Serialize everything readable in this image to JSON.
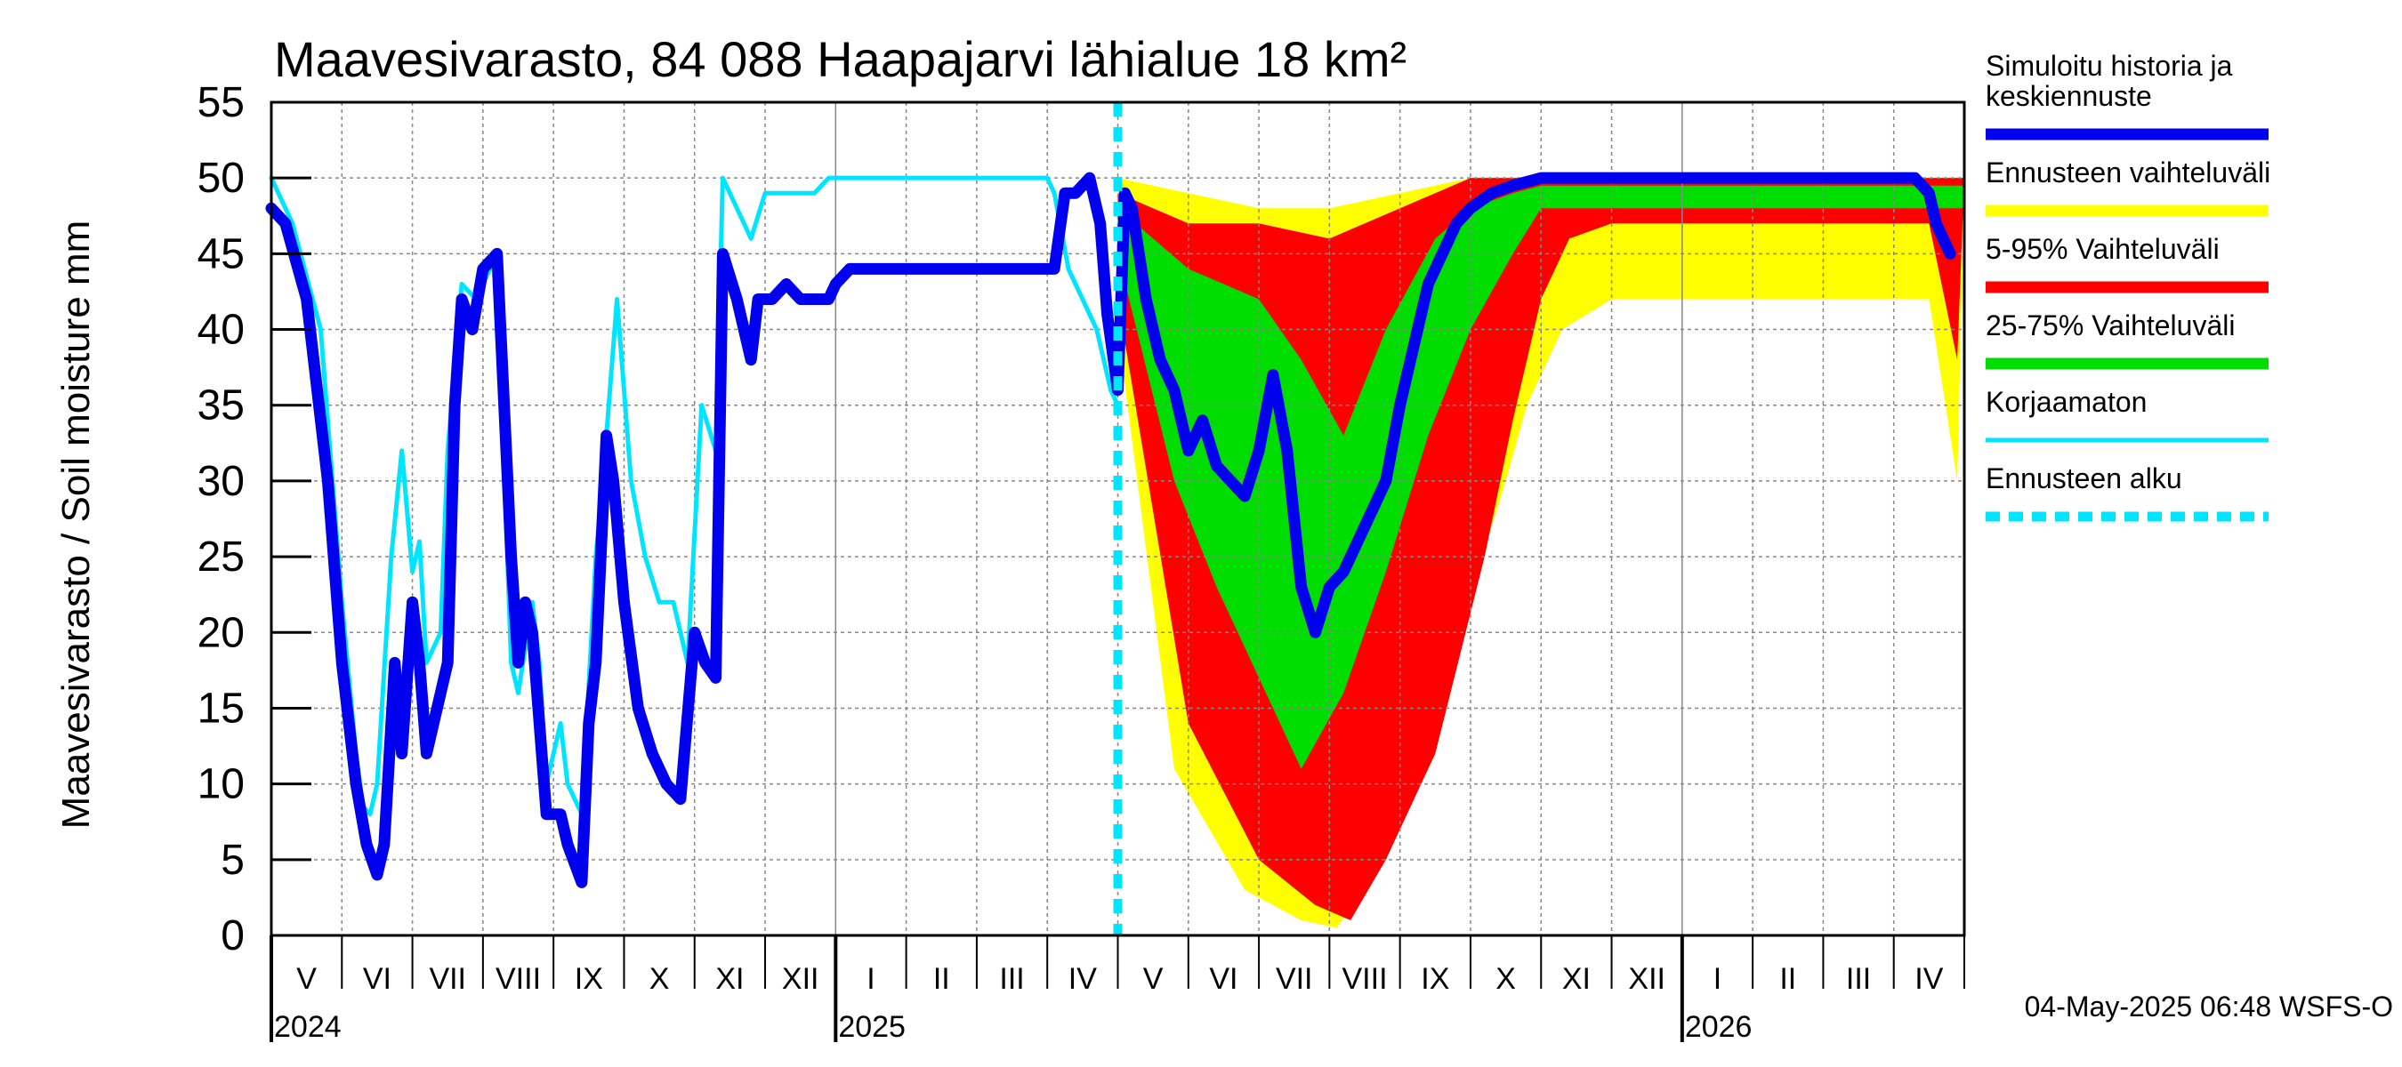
{
  "chart_data": {
    "type": "area",
    "title": "Maavesivarasto, 84 088 Haapajarvi lähialue 18 km²",
    "ylabel": "Maavesivarasto / Soil moisture   mm",
    "ylim": [
      0,
      55
    ],
    "yticks": [
      "0",
      "5",
      "10",
      "15",
      "20",
      "25",
      "30",
      "35",
      "40",
      "45",
      "50",
      "55"
    ],
    "x_start_month": "2024-04-15",
    "x_months": [
      "V",
      "VI",
      "VII",
      "VIII",
      "IX",
      "X",
      "XI",
      "XII",
      "I",
      "II",
      "III",
      "IV",
      "V",
      "VI",
      "VII",
      "VIII",
      "IX",
      "X",
      "XI",
      "XII",
      "I",
      "II",
      "III",
      "IV"
    ],
    "years": [
      {
        "label": "2024",
        "month_index": 0
      },
      {
        "label": "2025",
        "month_index": 8
      },
      {
        "label": "2026",
        "month_index": 20
      }
    ],
    "forecast_start_month_index": 12.0,
    "grid": true,
    "series": [
      {
        "name": "Korjaamaton",
        "color": "#00e5ff",
        "points": [
          [
            0,
            50
          ],
          [
            0.3,
            47
          ],
          [
            0.7,
            40
          ],
          [
            1.0,
            22
          ],
          [
            1.2,
            12
          ],
          [
            1.3,
            8.5
          ],
          [
            1.4,
            8
          ],
          [
            1.5,
            10
          ],
          [
            1.7,
            25
          ],
          [
            1.85,
            32
          ],
          [
            2.0,
            24
          ],
          [
            2.1,
            26
          ],
          [
            2.2,
            18
          ],
          [
            2.4,
            20
          ],
          [
            2.5,
            32
          ],
          [
            2.7,
            43
          ],
          [
            2.9,
            42
          ],
          [
            3.1,
            44
          ],
          [
            3.2,
            44
          ],
          [
            3.4,
            18
          ],
          [
            3.5,
            16
          ],
          [
            3.7,
            22
          ],
          [
            3.8,
            18
          ],
          [
            3.9,
            10
          ],
          [
            4.1,
            14
          ],
          [
            4.2,
            10
          ],
          [
            4.4,
            8
          ],
          [
            4.6,
            25
          ],
          [
            4.7,
            30
          ],
          [
            4.9,
            42
          ],
          [
            5.1,
            30
          ],
          [
            5.3,
            25
          ],
          [
            5.5,
            22
          ],
          [
            5.7,
            22
          ],
          [
            5.9,
            18
          ],
          [
            6.1,
            35
          ],
          [
            6.3,
            32
          ],
          [
            6.4,
            50
          ],
          [
            6.6,
            48
          ],
          [
            6.8,
            46
          ],
          [
            7.0,
            49
          ],
          [
            7.3,
            49
          ],
          [
            7.7,
            49
          ],
          [
            7.9,
            50
          ],
          [
            9,
            50
          ],
          [
            10,
            50
          ],
          [
            11,
            50
          ],
          [
            11.1,
            49
          ],
          [
            11.3,
            44
          ],
          [
            11.5,
            42
          ],
          [
            11.7,
            40
          ],
          [
            11.9,
            36
          ],
          [
            12.0,
            35
          ]
        ]
      },
      {
        "name": "Simuloitu historia ja keskiennuste",
        "color": "#0000ee",
        "points": [
          [
            0,
            48
          ],
          [
            0.2,
            47
          ],
          [
            0.5,
            42
          ],
          [
            0.8,
            30
          ],
          [
            1.0,
            18
          ],
          [
            1.2,
            10
          ],
          [
            1.35,
            6
          ],
          [
            1.5,
            4
          ],
          [
            1.6,
            6
          ],
          [
            1.75,
            18
          ],
          [
            1.85,
            12
          ],
          [
            2.0,
            22
          ],
          [
            2.1,
            18
          ],
          [
            2.2,
            12
          ],
          [
            2.4,
            16
          ],
          [
            2.5,
            18
          ],
          [
            2.6,
            35
          ],
          [
            2.7,
            42
          ],
          [
            2.85,
            40
          ],
          [
            3.0,
            44
          ],
          [
            3.2,
            45
          ],
          [
            3.4,
            25
          ],
          [
            3.5,
            18
          ],
          [
            3.6,
            22
          ],
          [
            3.7,
            20
          ],
          [
            3.8,
            14
          ],
          [
            3.9,
            8
          ],
          [
            4.1,
            8
          ],
          [
            4.2,
            6
          ],
          [
            4.4,
            3.5
          ],
          [
            4.5,
            14
          ],
          [
            4.6,
            18
          ],
          [
            4.75,
            33
          ],
          [
            4.85,
            30
          ],
          [
            5.0,
            22
          ],
          [
            5.2,
            15
          ],
          [
            5.4,
            12
          ],
          [
            5.6,
            10
          ],
          [
            5.8,
            9
          ],
          [
            6.0,
            20
          ],
          [
            6.15,
            18
          ],
          [
            6.3,
            17
          ],
          [
            6.4,
            45
          ],
          [
            6.6,
            42
          ],
          [
            6.8,
            38
          ],
          [
            6.9,
            42
          ],
          [
            7.1,
            42
          ],
          [
            7.3,
            43
          ],
          [
            7.5,
            42
          ],
          [
            7.9,
            42
          ],
          [
            8.0,
            43
          ],
          [
            8.2,
            44
          ],
          [
            9,
            44
          ],
          [
            10,
            44
          ],
          [
            11.1,
            44
          ],
          [
            11.25,
            49
          ],
          [
            11.4,
            49
          ],
          [
            11.6,
            50
          ],
          [
            11.75,
            47
          ],
          [
            11.85,
            41
          ],
          [
            12.0,
            36
          ],
          [
            12.1,
            49
          ],
          [
            12.2,
            48
          ],
          [
            12.4,
            42
          ],
          [
            12.6,
            38
          ],
          [
            12.8,
            36
          ],
          [
            13.0,
            32
          ],
          [
            13.2,
            34
          ],
          [
            13.4,
            31
          ],
          [
            13.6,
            30
          ],
          [
            13.8,
            29
          ],
          [
            14.0,
            32
          ],
          [
            14.2,
            37
          ],
          [
            14.4,
            32
          ],
          [
            14.6,
            23
          ],
          [
            14.8,
            20
          ],
          [
            15.0,
            23
          ],
          [
            15.2,
            24
          ],
          [
            15.4,
            26
          ],
          [
            15.6,
            28
          ],
          [
            15.8,
            30
          ],
          [
            16.0,
            35
          ],
          [
            16.2,
            39
          ],
          [
            16.4,
            43
          ],
          [
            16.6,
            45
          ],
          [
            16.8,
            47
          ],
          [
            17.0,
            48
          ],
          [
            17.3,
            49
          ],
          [
            17.6,
            49.5
          ],
          [
            18,
            50
          ],
          [
            19,
            50
          ],
          [
            20,
            50
          ],
          [
            21,
            50
          ],
          [
            22,
            50
          ],
          [
            23,
            50
          ],
          [
            23.3,
            50
          ],
          [
            23.5,
            49
          ],
          [
            23.6,
            47
          ],
          [
            23.8,
            45
          ]
        ]
      },
      {
        "name": "Ennusteen vaihteluväli",
        "color": "#ffff00",
        "upper": [
          [
            12,
            50
          ],
          [
            13,
            49
          ],
          [
            14,
            48
          ],
          [
            15,
            48
          ],
          [
            16,
            49
          ],
          [
            17,
            50
          ],
          [
            24,
            50
          ]
        ],
        "lower": [
          [
            12,
            40
          ],
          [
            12.8,
            11
          ],
          [
            13.8,
            3
          ],
          [
            14.6,
            1
          ],
          [
            15.1,
            0.5
          ],
          [
            15.5,
            3
          ],
          [
            16.5,
            15
          ],
          [
            17.5,
            30
          ],
          [
            17.8,
            35
          ],
          [
            18.3,
            40
          ],
          [
            19,
            42
          ],
          [
            23.5,
            42
          ],
          [
            23.9,
            30
          ]
        ]
      },
      {
        "name": "5-95% Vaihteluväli",
        "color": "#ff0000",
        "upper": [
          [
            12,
            49
          ],
          [
            12.5,
            48
          ],
          [
            13,
            47
          ],
          [
            14,
            47
          ],
          [
            15,
            46
          ],
          [
            16,
            48
          ],
          [
            17,
            50
          ],
          [
            24,
            50
          ]
        ],
        "lower": [
          [
            12,
            42
          ],
          [
            13.0,
            14
          ],
          [
            14.0,
            5
          ],
          [
            14.8,
            2
          ],
          [
            15.3,
            1
          ],
          [
            15.8,
            5
          ],
          [
            16.5,
            12
          ],
          [
            17.2,
            25
          ],
          [
            17.6,
            34
          ],
          [
            18.0,
            42
          ],
          [
            18.4,
            46
          ],
          [
            19,
            47
          ],
          [
            23.5,
            47
          ],
          [
            23.9,
            38
          ]
        ]
      },
      {
        "name": "25-75% Vaihteluväli",
        "color": "#00dd00",
        "upper": [
          [
            12,
            48
          ],
          [
            13,
            44
          ],
          [
            14,
            42
          ],
          [
            14.6,
            38
          ],
          [
            15.2,
            33
          ],
          [
            15.8,
            40
          ],
          [
            16.5,
            46
          ],
          [
            17.0,
            48
          ],
          [
            17.6,
            49
          ],
          [
            18.0,
            49.5
          ],
          [
            24,
            49.5
          ]
        ],
        "lower": [
          [
            12,
            45
          ],
          [
            12.8,
            30
          ],
          [
            13.4,
            23
          ],
          [
            14.0,
            17
          ],
          [
            14.6,
            11
          ],
          [
            15.2,
            16
          ],
          [
            15.8,
            24
          ],
          [
            16.4,
            33
          ],
          [
            17.0,
            40
          ],
          [
            17.6,
            45
          ],
          [
            18,
            48
          ],
          [
            24,
            48
          ]
        ]
      }
    ]
  },
  "legend": [
    {
      "label_lines": [
        "Simuloitu historia ja",
        "keskiennuste"
      ],
      "color": "#0000ee",
      "style": "solid"
    },
    {
      "label_lines": [
        "Ennusteen vaihteluväli"
      ],
      "color": "#ffff00",
      "style": "solid"
    },
    {
      "label_lines": [
        "5-95% Vaihteluväli"
      ],
      "color": "#ff0000",
      "style": "solid"
    },
    {
      "label_lines": [
        "25-75% Vaihteluväli"
      ],
      "color": "#00dd00",
      "style": "solid"
    },
    {
      "label_lines": [
        "Korjaamaton"
      ],
      "color": "#00e5ff",
      "style": "thin"
    },
    {
      "label_lines": [
        "Ennusteen alku"
      ],
      "color": "#00e5ff",
      "style": "dashed"
    }
  ],
  "footer": "04-May-2025 06:48 WSFS-O"
}
